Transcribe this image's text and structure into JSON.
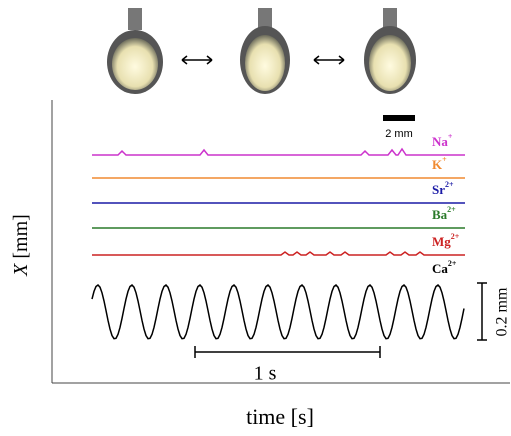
{
  "figure": {
    "scale_bar": "2 mm",
    "ions": [
      {
        "symbol": "Na",
        "charge": "+",
        "color": "#cc33cc"
      },
      {
        "symbol": "K",
        "charge": "+",
        "color": "#f08a30"
      },
      {
        "symbol": "Sr",
        "charge": "2+",
        "color": "#1a1aa6"
      },
      {
        "symbol": "Ba",
        "charge": "2+",
        "color": "#2a7a2a"
      },
      {
        "symbol": "Mg",
        "charge": "2+",
        "color": "#cc2222"
      },
      {
        "symbol": "Ca",
        "charge": "2+",
        "color": "#000000"
      }
    ],
    "y_label": {
      "symbol": "X",
      "unit": "[mm]"
    },
    "x_label": "time [s]",
    "time_bar": "1 s",
    "amplitude_bar": "0.2 mm"
  }
}
